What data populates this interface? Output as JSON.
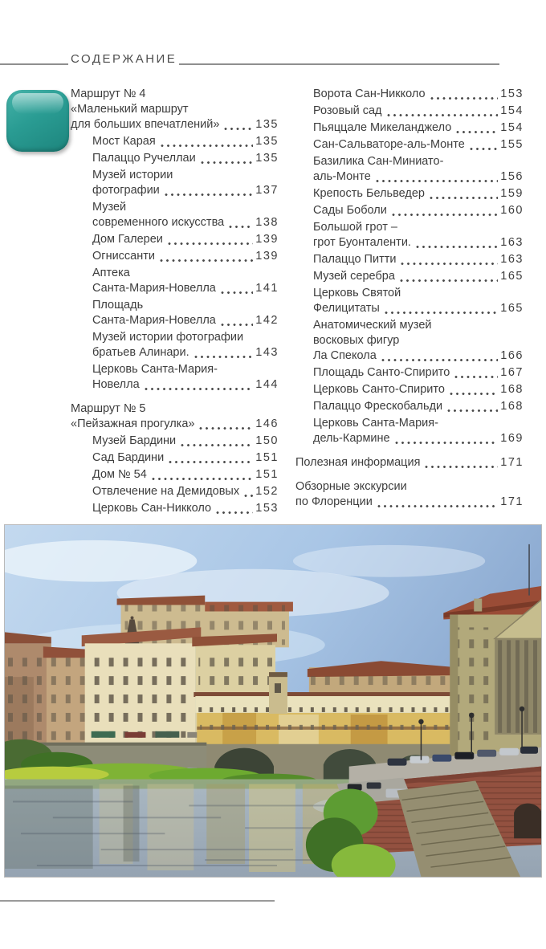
{
  "header": {
    "title": "СОДЕРЖАНИЕ"
  },
  "route_icon": {
    "name": "route-marker-badge",
    "color": "#2a9c93"
  },
  "photo": {
    "name": "ponte-vecchio-florence"
  },
  "toc": {
    "left": [
      {
        "level": "top",
        "lines": [
          "Маршрут № 4",
          "«Маленький маршрут",
          "для больших впечатлений»"
        ],
        "page": "135"
      },
      {
        "level": "sub",
        "lines": [
          "Мост Карая"
        ],
        "page": "135"
      },
      {
        "level": "sub",
        "lines": [
          "Палаццо Ручеллаи"
        ],
        "page": "135"
      },
      {
        "level": "sub",
        "lines": [
          "Музей истории",
          "фотографии"
        ],
        "page": "137"
      },
      {
        "level": "sub",
        "lines": [
          "Музей",
          "современного искусства"
        ],
        "page": "138"
      },
      {
        "level": "sub",
        "lines": [
          "Дом Галереи"
        ],
        "page": "139"
      },
      {
        "level": "sub",
        "lines": [
          "Огниссанти"
        ],
        "page": "139"
      },
      {
        "level": "sub",
        "lines": [
          "Аптека",
          "Санта-Мария-Новелла"
        ],
        "page": "141"
      },
      {
        "level": "sub",
        "lines": [
          "Площадь",
          "Санта-Мария-Новелла"
        ],
        "page": "142"
      },
      {
        "level": "sub",
        "lines": [
          "Музей истории фотографии",
          "братьев Алинари."
        ],
        "page": "143"
      },
      {
        "level": "sub",
        "lines": [
          "Церковь Санта-Мария-",
          "Новелла"
        ],
        "page": "144"
      },
      {
        "level": "top",
        "lines": [
          "Маршрут № 5",
          "«Пейзажная прогулка»"
        ],
        "page": "146"
      },
      {
        "level": "sub",
        "lines": [
          "Музей Бардини"
        ],
        "page": "150"
      },
      {
        "level": "sub",
        "lines": [
          "Сад Бардини"
        ],
        "page": "151"
      },
      {
        "level": "sub",
        "lines": [
          "Дом № 54"
        ],
        "page": "151"
      },
      {
        "level": "sub",
        "lines": [
          "Отвлечение на Демидовых"
        ],
        "page": "152"
      },
      {
        "level": "sub",
        "lines": [
          "Церковь Сан-Никколо"
        ],
        "page": "153"
      }
    ],
    "right": [
      {
        "level": "sub",
        "lines": [
          "Ворота Сан-Никколо"
        ],
        "page": "153"
      },
      {
        "level": "sub",
        "lines": [
          "Розовый сад"
        ],
        "page": "154"
      },
      {
        "level": "sub",
        "lines": [
          "Пьяццале Микеланджело"
        ],
        "page": "154"
      },
      {
        "level": "sub",
        "lines": [
          "Сан-Сальваторе-аль-Монте"
        ],
        "page": "155"
      },
      {
        "level": "sub",
        "lines": [
          "Базилика Сан-Миниато-",
          "аль-Монте"
        ],
        "page": "156"
      },
      {
        "level": "sub",
        "lines": [
          "Крепость Бельведер"
        ],
        "page": "159"
      },
      {
        "level": "sub",
        "lines": [
          "Сады Боболи"
        ],
        "page": "160"
      },
      {
        "level": "sub",
        "lines": [
          "Большой грот –",
          "грот Буонталенти."
        ],
        "page": "163"
      },
      {
        "level": "sub",
        "lines": [
          "Палаццо Питти"
        ],
        "page": "163"
      },
      {
        "level": "sub",
        "lines": [
          "Музей серебра"
        ],
        "page": "165"
      },
      {
        "level": "sub",
        "lines": [
          "Церковь Святой",
          "Фелицитаты"
        ],
        "page": "165"
      },
      {
        "level": "sub",
        "lines": [
          "Анатомический музей",
          "восковых фигур",
          "Ла Спекола"
        ],
        "page": "166"
      },
      {
        "level": "sub",
        "lines": [
          "Площадь Санто-Спирито"
        ],
        "page": "167"
      },
      {
        "level": "sub",
        "lines": [
          "Церковь Санто-Спирито"
        ],
        "page": "168"
      },
      {
        "level": "sub",
        "lines": [
          "Палаццо Фрескобальди"
        ],
        "page": "168"
      },
      {
        "level": "sub",
        "lines": [
          "Церковь Санта-Мария-",
          "дель-Кармине"
        ],
        "page": "169"
      },
      {
        "level": "top",
        "lines": [
          "Полезная информация"
        ],
        "page": "171"
      },
      {
        "level": "top",
        "lines": [
          "Обзорные экскурсии",
          "по Флоренции"
        ],
        "page": "171"
      }
    ]
  }
}
